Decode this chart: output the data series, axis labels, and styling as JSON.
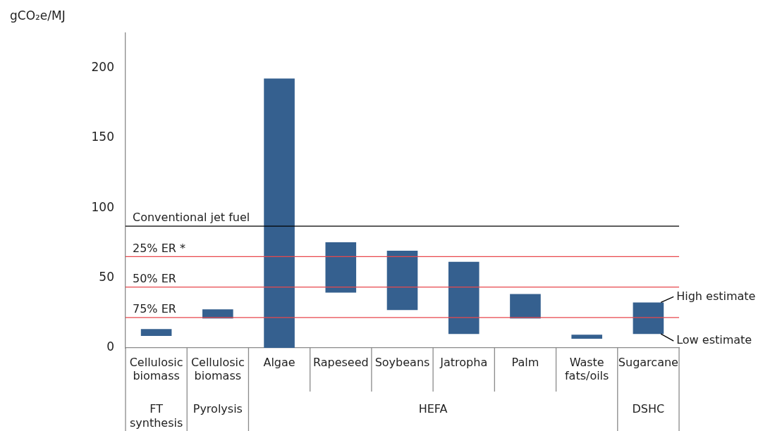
{
  "chart_data": {
    "type": "bar",
    "ylabel": "gCO₂e/MJ",
    "categories": [
      "Cellulosic biomass",
      "Cellulosic biomass",
      "Algae",
      "Rapeseed",
      "Soybeans",
      "Jatropha",
      "Palm",
      "Waste fats/oils",
      "Sugarcane"
    ],
    "base": [
      8.5,
      21,
      0,
      39.5,
      27,
      10,
      21,
      6.5,
      10
    ],
    "values": [
      5,
      6.5,
      192.5,
      36,
      42.5,
      51.5,
      17.5,
      3,
      22.5
    ],
    "color": "#35608f",
    "ylim": [
      0,
      225
    ],
    "yticks": [
      0,
      50,
      100,
      150,
      200
    ],
    "grid": false,
    "legend": false,
    "ref_lines": [
      {
        "axis": "y",
        "value": 87,
        "label": "Conventional jet fuel",
        "color": "#000000"
      },
      {
        "axis": "y",
        "value": 65.2,
        "label": "25% ER *",
        "color": "#e8474c"
      },
      {
        "axis": "y",
        "value": 43.5,
        "label": "50% ER",
        "color": "#e8474c"
      },
      {
        "axis": "y",
        "value": 21.7,
        "label": "75% ER",
        "color": "#e8474c"
      }
    ],
    "annotations": [
      "FT synthesis",
      "Pyrolysis",
      "HEFA",
      "DSHC",
      {
        "text": "High estimate",
        "x": "Sugarcane",
        "y": 32.5
      },
      {
        "text": "Low estimate",
        "x": "Sugarcane",
        "y": 10
      }
    ]
  }
}
